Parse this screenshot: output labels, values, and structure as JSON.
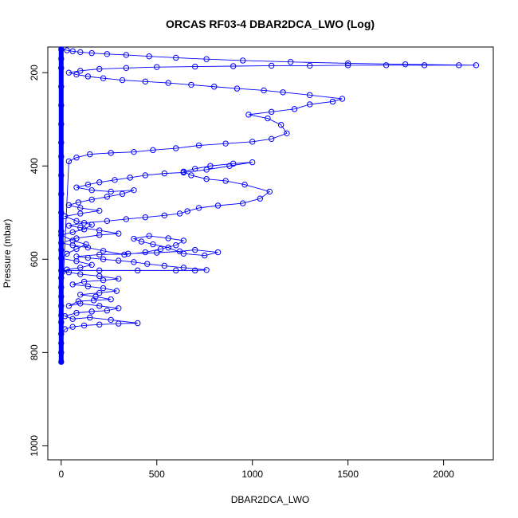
{
  "chart_data": {
    "type": "line",
    "title": "ORCAS RF03-4 DBAR2DCA_LWO (Log)",
    "xlabel": "DBAR2DCA_LWO",
    "ylabel": "Pressure (mbar)",
    "xlim": [
      -70,
      2260
    ],
    "ylim": [
      1030,
      145
    ],
    "y_reversed": true,
    "x_ticks": [
      0,
      500,
      1000,
      1500,
      2000
    ],
    "y_ticks": [
      200,
      400,
      600,
      800,
      1000
    ],
    "marker": "open-circle",
    "line_color": "#0000ff",
    "grid": false,
    "series": [
      {
        "points": [
          [
            0,
            820
          ],
          [
            0,
            800
          ],
          [
            0,
            780
          ],
          [
            0,
            760
          ],
          [
            20,
            750
          ],
          [
            60,
            745
          ],
          [
            120,
            742
          ],
          [
            200,
            740
          ],
          [
            300,
            738
          ],
          [
            400,
            737
          ],
          [
            260,
            730
          ],
          [
            150,
            725
          ],
          [
            60,
            728
          ],
          [
            20,
            722
          ],
          [
            80,
            715
          ],
          [
            160,
            712
          ],
          [
            240,
            710
          ],
          [
            300,
            705
          ],
          [
            200,
            700
          ],
          [
            100,
            695
          ],
          [
            40,
            700
          ],
          [
            90,
            690
          ],
          [
            170,
            688
          ],
          [
            260,
            686
          ],
          [
            180,
            680
          ],
          [
            100,
            676
          ],
          [
            200,
            672
          ],
          [
            290,
            668
          ],
          [
            220,
            662
          ],
          [
            140,
            658
          ],
          [
            60,
            654
          ],
          [
            120,
            648
          ],
          [
            220,
            645
          ],
          [
            300,
            642
          ],
          [
            200,
            636
          ],
          [
            100,
            632
          ],
          [
            40,
            628
          ],
          [
            0,
            624
          ],
          [
            200,
            624
          ],
          [
            400,
            624
          ],
          [
            600,
            624
          ],
          [
            700,
            624
          ],
          [
            760,
            623
          ],
          [
            640,
            618
          ],
          [
            540,
            614
          ],
          [
            450,
            610
          ],
          [
            380,
            606
          ],
          [
            300,
            603
          ],
          [
            220,
            600
          ],
          [
            140,
            597
          ],
          [
            80,
            594
          ],
          [
            200,
            590
          ],
          [
            350,
            588
          ],
          [
            500,
            586
          ],
          [
            620,
            583
          ],
          [
            700,
            580
          ],
          [
            820,
            585
          ],
          [
            750,
            592
          ],
          [
            640,
            588
          ],
          [
            560,
            575
          ],
          [
            480,
            568
          ],
          [
            420,
            562
          ],
          [
            380,
            556
          ],
          [
            460,
            550
          ],
          [
            560,
            555
          ],
          [
            640,
            560
          ],
          [
            600,
            570
          ],
          [
            520,
            578
          ],
          [
            440,
            585
          ],
          [
            330,
            590
          ],
          [
            220,
            582
          ],
          [
            140,
            575
          ],
          [
            60,
            570
          ],
          [
            0,
            565
          ],
          [
            80,
            555
          ],
          [
            200,
            548
          ],
          [
            300,
            545
          ],
          [
            200,
            538
          ],
          [
            100,
            532
          ],
          [
            40,
            528
          ],
          [
            120,
            522
          ],
          [
            240,
            518
          ],
          [
            340,
            514
          ],
          [
            440,
            510
          ],
          [
            540,
            506
          ],
          [
            620,
            502
          ],
          [
            660,
            497
          ],
          [
            720,
            490
          ],
          [
            820,
            485
          ],
          [
            950,
            480
          ],
          [
            1040,
            470
          ],
          [
            1090,
            455
          ],
          [
            960,
            440
          ],
          [
            860,
            432
          ],
          [
            760,
            428
          ],
          [
            680,
            420
          ],
          [
            640,
            412
          ],
          [
            700,
            406
          ],
          [
            780,
            400
          ],
          [
            900,
            395
          ],
          [
            1000,
            392
          ],
          [
            880,
            400
          ],
          [
            760,
            408
          ],
          [
            640,
            414
          ],
          [
            540,
            416
          ],
          [
            440,
            420
          ],
          [
            360,
            425
          ],
          [
            280,
            430
          ],
          [
            200,
            435
          ],
          [
            140,
            440
          ],
          [
            80,
            446
          ],
          [
            160,
            452
          ],
          [
            260,
            455
          ],
          [
            380,
            452
          ],
          [
            320,
            460
          ],
          [
            240,
            466
          ],
          [
            160,
            472
          ],
          [
            90,
            478
          ],
          [
            40,
            484
          ],
          [
            100,
            490
          ],
          [
            200,
            496
          ],
          [
            100,
            502
          ],
          [
            20,
            508
          ],
          [
            80,
            518
          ],
          [
            160,
            526
          ],
          [
            120,
            536
          ],
          [
            60,
            542
          ],
          [
            0,
            548
          ],
          [
            60,
            560
          ],
          [
            130,
            568
          ],
          [
            80,
            578
          ],
          [
            30,
            588
          ],
          [
            0,
            598
          ],
          [
            80,
            604
          ],
          [
            160,
            612
          ],
          [
            100,
            618
          ],
          [
            30,
            622
          ],
          [
            0,
            640
          ],
          [
            0,
            660
          ],
          [
            0,
            680
          ],
          [
            0,
            700
          ],
          [
            0,
            720
          ],
          [
            0,
            735
          ],
          [
            40,
            390
          ],
          [
            80,
            382
          ],
          [
            150,
            375
          ],
          [
            260,
            372
          ],
          [
            380,
            370
          ],
          [
            480,
            366
          ],
          [
            600,
            362
          ],
          [
            720,
            356
          ],
          [
            860,
            352
          ],
          [
            1000,
            348
          ],
          [
            1100,
            342
          ],
          [
            1180,
            330
          ],
          [
            1150,
            312
          ],
          [
            1080,
            298
          ],
          [
            980,
            290
          ],
          [
            1100,
            284
          ],
          [
            1220,
            278
          ],
          [
            1300,
            268
          ],
          [
            1420,
            262
          ],
          [
            1470,
            256
          ],
          [
            1300,
            248
          ],
          [
            1160,
            242
          ],
          [
            1060,
            238
          ],
          [
            920,
            234
          ],
          [
            800,
            230
          ],
          [
            680,
            226
          ],
          [
            560,
            222
          ],
          [
            440,
            219
          ],
          [
            320,
            216
          ],
          [
            220,
            212
          ],
          [
            140,
            208
          ],
          [
            80,
            204
          ],
          [
            40,
            200
          ],
          [
            100,
            196
          ],
          [
            200,
            192
          ],
          [
            340,
            190
          ],
          [
            500,
            188
          ],
          [
            700,
            187
          ],
          [
            900,
            186
          ],
          [
            1100,
            185
          ],
          [
            1300,
            185
          ],
          [
            1500,
            184
          ],
          [
            1700,
            184
          ],
          [
            1900,
            184
          ],
          [
            2080,
            184
          ],
          [
            2170,
            184
          ],
          [
            1800,
            182
          ],
          [
            1500,
            180
          ],
          [
            1200,
            177
          ],
          [
            950,
            174
          ],
          [
            760,
            171
          ],
          [
            600,
            168
          ],
          [
            460,
            165
          ],
          [
            340,
            162
          ],
          [
            240,
            160
          ],
          [
            160,
            158
          ],
          [
            100,
            156
          ],
          [
            60,
            154
          ],
          [
            30,
            152
          ],
          [
            0,
            150
          ],
          [
            0,
            170
          ],
          [
            0,
            190
          ],
          [
            0,
            230
          ],
          [
            0,
            270
          ],
          [
            0,
            310
          ],
          [
            0,
            350
          ],
          [
            0,
            380
          ],
          [
            0,
            420
          ],
          [
            0,
            460
          ],
          [
            0,
            500
          ],
          [
            0,
            540
          ],
          [
            0,
            580
          ]
        ]
      }
    ]
  }
}
